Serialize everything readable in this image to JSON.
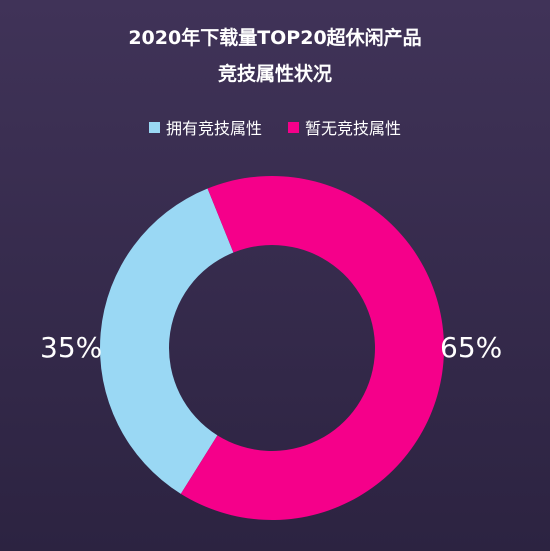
{
  "chart_data": {
    "type": "pie",
    "title_line1": "2020年下载量TOP20超休闲产品",
    "title_line2": "竞技属性状况",
    "legend_position": "top",
    "categories": [
      "拥有竞技属性",
      "暂无竞技属性"
    ],
    "values": [
      35,
      65
    ],
    "labels": [
      "35%",
      "65%"
    ],
    "colors": [
      "#9ad8f4",
      "#f5008a"
    ]
  }
}
